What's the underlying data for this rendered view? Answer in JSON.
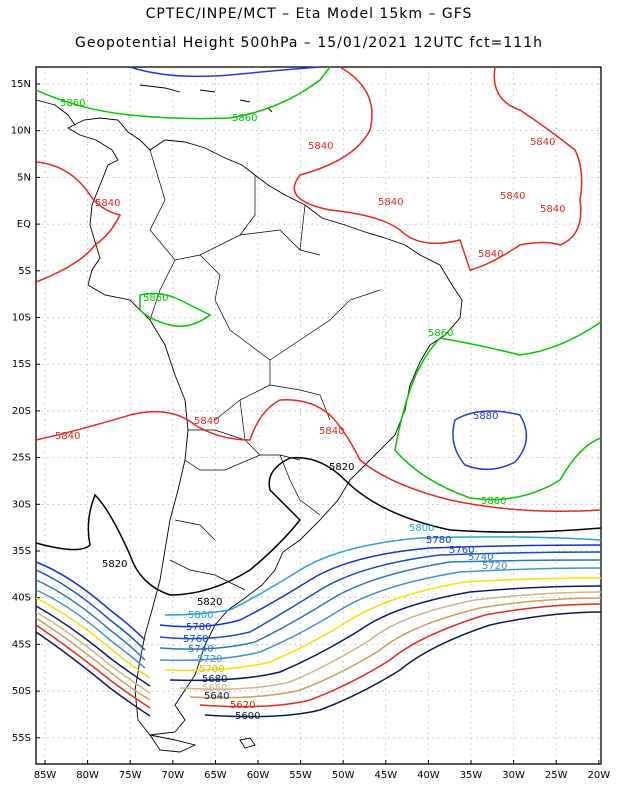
{
  "header": {
    "line1": "CPTEC/INPE/MCT –  Eta Model 15km – GFS",
    "line2": "Geopotential Height 500hPa – 15/01/2021 12UTC fct=111h"
  },
  "axes": {
    "lat_ticks": [
      "15N",
      "10N",
      "5N",
      "EQ",
      "5S",
      "10S",
      "15S",
      "20S",
      "25S",
      "30S",
      "35S",
      "40S",
      "45S",
      "50S",
      "55S"
    ],
    "lon_ticks": [
      "85W",
      "80W",
      "75W",
      "70W",
      "65W",
      "60W",
      "55W",
      "50W",
      "45W",
      "40W",
      "35W",
      "30W",
      "25W",
      "20W"
    ]
  },
  "contour_colors": {
    "5620": "#e6281e",
    "5680": "#0a1a6a",
    "5700": "#f5e000",
    "5720": "#3c96c8",
    "5740": "#2878b4",
    "5760": "#1450c8",
    "5780": "#1432dc",
    "5800": "#28a0dc",
    "5820": "#000000",
    "5840": "#e6281e",
    "5860": "#00c800",
    "5880": "#1e3cdc",
    "5640": "#c8a05a",
    "5660": "#d2b48c",
    "5600": "#0a1a50"
  },
  "contour_labels": {
    "l5860_n": "5860",
    "l5860_n2": "5860",
    "l5840_1": "5840",
    "l5840_2": "5840",
    "l5840_3": "5840",
    "l5840_4": "5840",
    "l5840_5": "5840",
    "l5840_6": "5840",
    "l5840_7": "5840",
    "l5860_amz": "5860",
    "l5860_atl": "5860",
    "l5880": "5880",
    "l5840_w": "5840",
    "l5840_c": "5840",
    "l5840_e": "5840",
    "l5820_c": "5820",
    "l5860_s": "5860",
    "l5800_e": "5800",
    "l5780_e": "5780",
    "l5760_e": "5760",
    "l5740_e": "5740",
    "l5720_e": "5720",
    "l5820_w": "5820",
    "l5820_s": "5820",
    "l5800_s": "5800",
    "l5780_s": "5780",
    "l5760_s": "5760",
    "l5740_s": "5740",
    "l5720_s": "5720",
    "l5700_s": "5700",
    "l5680_s": "5680",
    "l5660_s": "5660",
    "l5640_s": "5640",
    "l5620_s": "5620",
    "l5600_s": "5600"
  }
}
